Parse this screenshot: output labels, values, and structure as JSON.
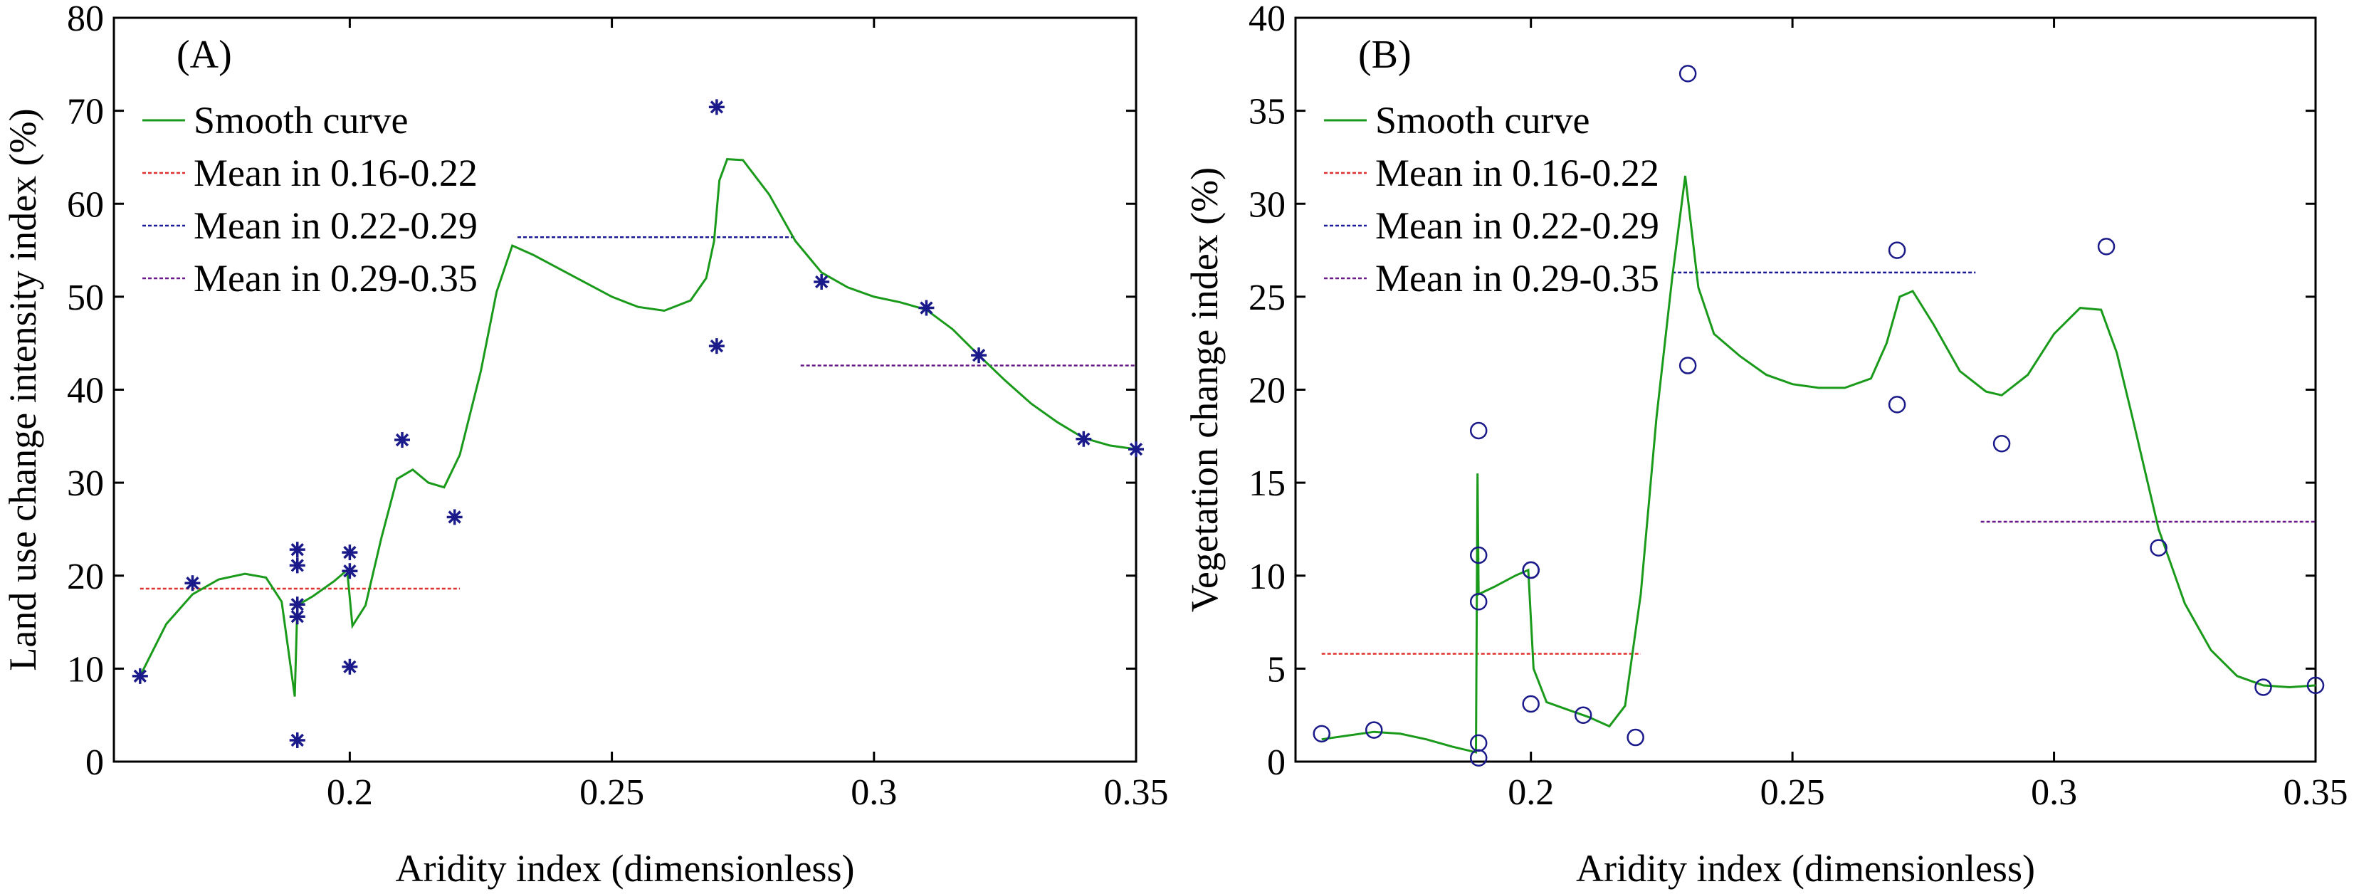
{
  "colors": {
    "smooth": "#1a9a1a",
    "mean1": "#e03030",
    "mean2": "#1a1a9a",
    "mean3": "#6a1a8a",
    "marker": "#1a1a8a",
    "axis": "#000000"
  },
  "chart_data": [
    {
      "type": "scatter",
      "panel_label": "(A)",
      "xlabel": "Aridity index (dimensionless)",
      "ylabel": "Land use change intensity index (%)",
      "xlim": [
        0.155,
        0.35
      ],
      "ylim": [
        0,
        80
      ],
      "xticks": [
        0.2,
        0.25,
        0.3,
        0.35
      ],
      "xtick_labels": [
        "0.2",
        "0.25",
        "0.3",
        "0.35"
      ],
      "yticks": [
        0,
        10,
        20,
        30,
        40,
        50,
        60,
        70,
        80
      ],
      "ytick_labels": [
        "0",
        "10",
        "20",
        "30",
        "40",
        "50",
        "60",
        "70",
        "80"
      ],
      "marker": "asterisk",
      "legend": {
        "position": "top-left",
        "entries": [
          "Smooth curve",
          "Mean in 0.16-0.22",
          "Mean in 0.22-0.29",
          "Mean in 0.29-0.35"
        ]
      },
      "points": [
        [
          0.16,
          9.2
        ],
        [
          0.17,
          19.2
        ],
        [
          0.19,
          22.8
        ],
        [
          0.19,
          21.1
        ],
        [
          0.19,
          16.9
        ],
        [
          0.19,
          15.6
        ],
        [
          0.19,
          2.3
        ],
        [
          0.2,
          22.5
        ],
        [
          0.2,
          20.5
        ],
        [
          0.2,
          10.2
        ],
        [
          0.21,
          34.6
        ],
        [
          0.22,
          26.3
        ],
        [
          0.27,
          70.4
        ],
        [
          0.27,
          44.7
        ],
        [
          0.29,
          51.6
        ],
        [
          0.31,
          48.8
        ],
        [
          0.32,
          43.7
        ],
        [
          0.34,
          34.7
        ],
        [
          0.35,
          33.6
        ]
      ],
      "smooth_curve": [
        [
          0.16,
          9.2
        ],
        [
          0.165,
          14.8
        ],
        [
          0.17,
          18.0
        ],
        [
          0.175,
          19.6
        ],
        [
          0.18,
          20.2
        ],
        [
          0.184,
          19.8
        ],
        [
          0.187,
          17.2
        ],
        [
          0.1895,
          7.0
        ],
        [
          0.19,
          16.8
        ],
        [
          0.193,
          17.8
        ],
        [
          0.197,
          19.4
        ],
        [
          0.1995,
          20.6
        ],
        [
          0.2005,
          14.6
        ],
        [
          0.203,
          16.8
        ],
        [
          0.206,
          24.0
        ],
        [
          0.209,
          30.4
        ],
        [
          0.212,
          31.4
        ],
        [
          0.215,
          30.0
        ],
        [
          0.218,
          29.5
        ],
        [
          0.221,
          33.0
        ],
        [
          0.225,
          42.0
        ],
        [
          0.228,
          50.5
        ],
        [
          0.231,
          55.5
        ],
        [
          0.235,
          54.5
        ],
        [
          0.24,
          53.0
        ],
        [
          0.245,
          51.5
        ],
        [
          0.25,
          50.0
        ],
        [
          0.255,
          48.9
        ],
        [
          0.26,
          48.5
        ],
        [
          0.265,
          49.6
        ],
        [
          0.268,
          52.0
        ],
        [
          0.2695,
          56.0
        ],
        [
          0.2705,
          62.5
        ],
        [
          0.272,
          64.8
        ],
        [
          0.275,
          64.7
        ],
        [
          0.28,
          61.0
        ],
        [
          0.285,
          56.0
        ],
        [
          0.29,
          52.6
        ],
        [
          0.295,
          51.0
        ],
        [
          0.3,
          50.0
        ],
        [
          0.305,
          49.4
        ],
        [
          0.31,
          48.6
        ],
        [
          0.315,
          46.5
        ],
        [
          0.32,
          43.7
        ],
        [
          0.325,
          41.0
        ],
        [
          0.33,
          38.5
        ],
        [
          0.335,
          36.5
        ],
        [
          0.34,
          34.8
        ],
        [
          0.345,
          34.0
        ],
        [
          0.35,
          33.6
        ]
      ],
      "mean_lines": [
        {
          "x": [
            0.16,
            0.221
          ],
          "y": 18.6
        },
        {
          "x": [
            0.232,
            0.285
          ],
          "y": 56.4
        },
        {
          "x": [
            0.286,
            0.35
          ],
          "y": 42.6
        }
      ]
    },
    {
      "type": "scatter",
      "panel_label": "(B)",
      "xlabel": "Aridity index (dimensionless)",
      "ylabel": "Vegetation change index (%)",
      "xlim": [
        0.155,
        0.35
      ],
      "ylim": [
        0,
        40
      ],
      "xticks": [
        0.2,
        0.25,
        0.3,
        0.35
      ],
      "xtick_labels": [
        "0.2",
        "0.25",
        "0.3",
        "0.35"
      ],
      "yticks": [
        0,
        5,
        10,
        15,
        20,
        25,
        30,
        35,
        40
      ],
      "ytick_labels": [
        "0",
        "5",
        "10",
        "15",
        "20",
        "25",
        "30",
        "35",
        "40"
      ],
      "marker": "circle",
      "legend": {
        "position": "top-left",
        "entries": [
          "Smooth curve",
          "Mean in 0.16-0.22",
          "Mean in 0.22-0.29",
          "Mean in 0.29-0.35"
        ]
      },
      "points": [
        [
          0.16,
          1.5
        ],
        [
          0.17,
          1.7
        ],
        [
          0.19,
          17.8
        ],
        [
          0.19,
          11.1
        ],
        [
          0.19,
          8.6
        ],
        [
          0.19,
          1.0
        ],
        [
          0.19,
          0.2
        ],
        [
          0.2,
          10.3
        ],
        [
          0.2,
          10.3
        ],
        [
          0.2,
          3.1
        ],
        [
          0.21,
          2.5
        ],
        [
          0.22,
          1.3
        ],
        [
          0.23,
          37.0
        ],
        [
          0.23,
          21.3
        ],
        [
          0.27,
          27.5
        ],
        [
          0.27,
          19.2
        ],
        [
          0.29,
          17.1
        ],
        [
          0.31,
          27.7
        ],
        [
          0.32,
          11.5
        ],
        [
          0.34,
          4.0
        ],
        [
          0.35,
          4.1
        ]
      ],
      "smooth_curve": [
        [
          0.16,
          1.2
        ],
        [
          0.165,
          1.4
        ],
        [
          0.17,
          1.6
        ],
        [
          0.175,
          1.5
        ],
        [
          0.18,
          1.2
        ],
        [
          0.185,
          0.8
        ],
        [
          0.1895,
          0.5
        ],
        [
          0.1898,
          15.5
        ],
        [
          0.19,
          9.0
        ],
        [
          0.193,
          9.4
        ],
        [
          0.197,
          10.0
        ],
        [
          0.1995,
          10.3
        ],
        [
          0.2005,
          5.0
        ],
        [
          0.203,
          3.2
        ],
        [
          0.207,
          2.8
        ],
        [
          0.211,
          2.4
        ],
        [
          0.215,
          1.9
        ],
        [
          0.218,
          3.0
        ],
        [
          0.221,
          9.0
        ],
        [
          0.224,
          18.5
        ],
        [
          0.227,
          26.0
        ],
        [
          0.2295,
          31.5
        ],
        [
          0.232,
          25.5
        ],
        [
          0.235,
          23.0
        ],
        [
          0.24,
          21.8
        ],
        [
          0.245,
          20.8
        ],
        [
          0.25,
          20.3
        ],
        [
          0.255,
          20.1
        ],
        [
          0.26,
          20.1
        ],
        [
          0.265,
          20.6
        ],
        [
          0.268,
          22.5
        ],
        [
          0.2705,
          25.0
        ],
        [
          0.273,
          25.3
        ],
        [
          0.277,
          23.5
        ],
        [
          0.282,
          21.0
        ],
        [
          0.287,
          19.9
        ],
        [
          0.29,
          19.7
        ],
        [
          0.295,
          20.8
        ],
        [
          0.3,
          23.0
        ],
        [
          0.305,
          24.4
        ],
        [
          0.309,
          24.3
        ],
        [
          0.312,
          22.0
        ],
        [
          0.315,
          18.5
        ],
        [
          0.32,
          12.5
        ],
        [
          0.325,
          8.5
        ],
        [
          0.33,
          6.0
        ],
        [
          0.335,
          4.6
        ],
        [
          0.34,
          4.1
        ],
        [
          0.345,
          4.0
        ],
        [
          0.35,
          4.1
        ]
      ],
      "mean_lines": [
        {
          "x": [
            0.16,
            0.221
          ],
          "y": 5.8
        },
        {
          "x": [
            0.227,
            0.285
          ],
          "y": 26.3
        },
        {
          "x": [
            0.286,
            0.35
          ],
          "y": 12.9
        }
      ]
    }
  ]
}
